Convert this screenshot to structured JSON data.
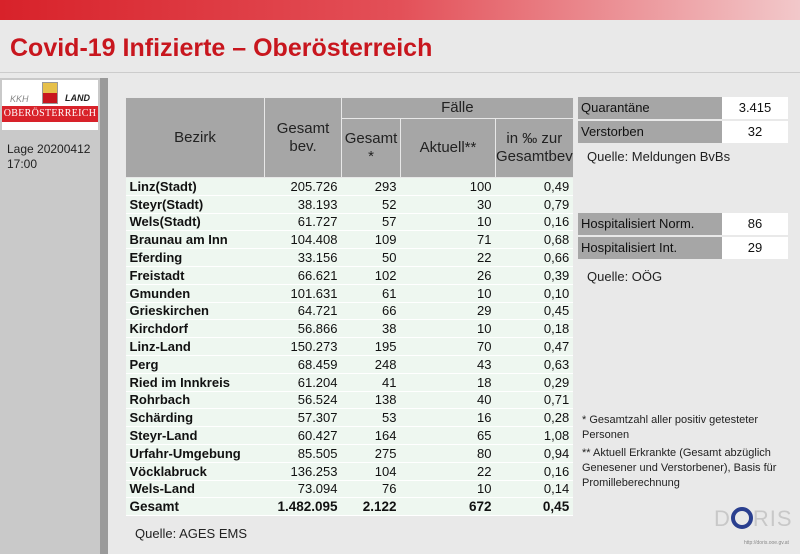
{
  "title": "Covid-19 Infizierte – Oberösterreich",
  "logo": {
    "kkh": "KKH",
    "land": "LAND",
    "name": "OBERÖSTERREICH"
  },
  "lage": "Lage 20200412 17:00",
  "table": {
    "headers": {
      "bezirk": "Bezirk",
      "gesamt_bev": "Gesamt bev.",
      "faelle": "Fälle",
      "gesamt": "Gesamt *",
      "aktuell": "Aktuell**",
      "promille": "in ‰ zur Gesamtbev"
    },
    "rows": [
      [
        "Linz(Stadt)",
        "205.726",
        "293",
        "100",
        "0,49"
      ],
      [
        "Steyr(Stadt)",
        "38.193",
        "52",
        "30",
        "0,79"
      ],
      [
        "Wels(Stadt)",
        "61.727",
        "57",
        "10",
        "0,16"
      ],
      [
        "Braunau am Inn",
        "104.408",
        "109",
        "71",
        "0,68"
      ],
      [
        "Eferding",
        "33.156",
        "50",
        "22",
        "0,66"
      ],
      [
        "Freistadt",
        "66.621",
        "102",
        "26",
        "0,39"
      ],
      [
        "Gmunden",
        "101.631",
        "61",
        "10",
        "0,10"
      ],
      [
        "Grieskirchen",
        "64.721",
        "66",
        "29",
        "0,45"
      ],
      [
        "Kirchdorf",
        "56.866",
        "38",
        "10",
        "0,18"
      ],
      [
        "Linz-Land",
        "150.273",
        "195",
        "70",
        "0,47"
      ],
      [
        "Perg",
        "68.459",
        "248",
        "43",
        "0,63"
      ],
      [
        "Ried im Innkreis",
        "61.204",
        "41",
        "18",
        "0,29"
      ],
      [
        "Rohrbach",
        "56.524",
        "138",
        "40",
        "0,71"
      ],
      [
        "Schärding",
        "57.307",
        "53",
        "16",
        "0,28"
      ],
      [
        "Steyr-Land",
        "60.427",
        "164",
        "65",
        "1,08"
      ],
      [
        "Urfahr-Umgebung",
        "85.505",
        "275",
        "80",
        "0,94"
      ],
      [
        "Vöcklabruck",
        "136.253",
        "104",
        "22",
        "0,16"
      ],
      [
        "Wels-Land",
        "73.094",
        "76",
        "10",
        "0,14"
      ],
      [
        "Gesamt",
        "1.482.095",
        "2.122",
        "672",
        "0,45"
      ]
    ]
  },
  "quelle_ages": "Quelle: AGES EMS",
  "box1": {
    "rows": [
      {
        "label": "Quarantäne",
        "value": "3.415"
      },
      {
        "label": "Verstorben",
        "value": "32"
      }
    ],
    "quelle": "Quelle: Meldungen BvBs"
  },
  "box2": {
    "rows": [
      {
        "label": "Hospitalisiert Norm.",
        "value": "86"
      },
      {
        "label": "Hospitalisiert Int.",
        "value": "29"
      }
    ],
    "quelle": "Quelle: OÖG"
  },
  "footnote1": "* Gesamtzahl aller positiv getesteter Personen",
  "footnote2": "** Aktuell Erkrankte (Gesamt abzüglich Genesener und Verstorbener), Basis für Promilleberechnung",
  "doris": {
    "d": "D",
    "ris": "RIS",
    "url": "http://doris.ooe.gv.at"
  }
}
